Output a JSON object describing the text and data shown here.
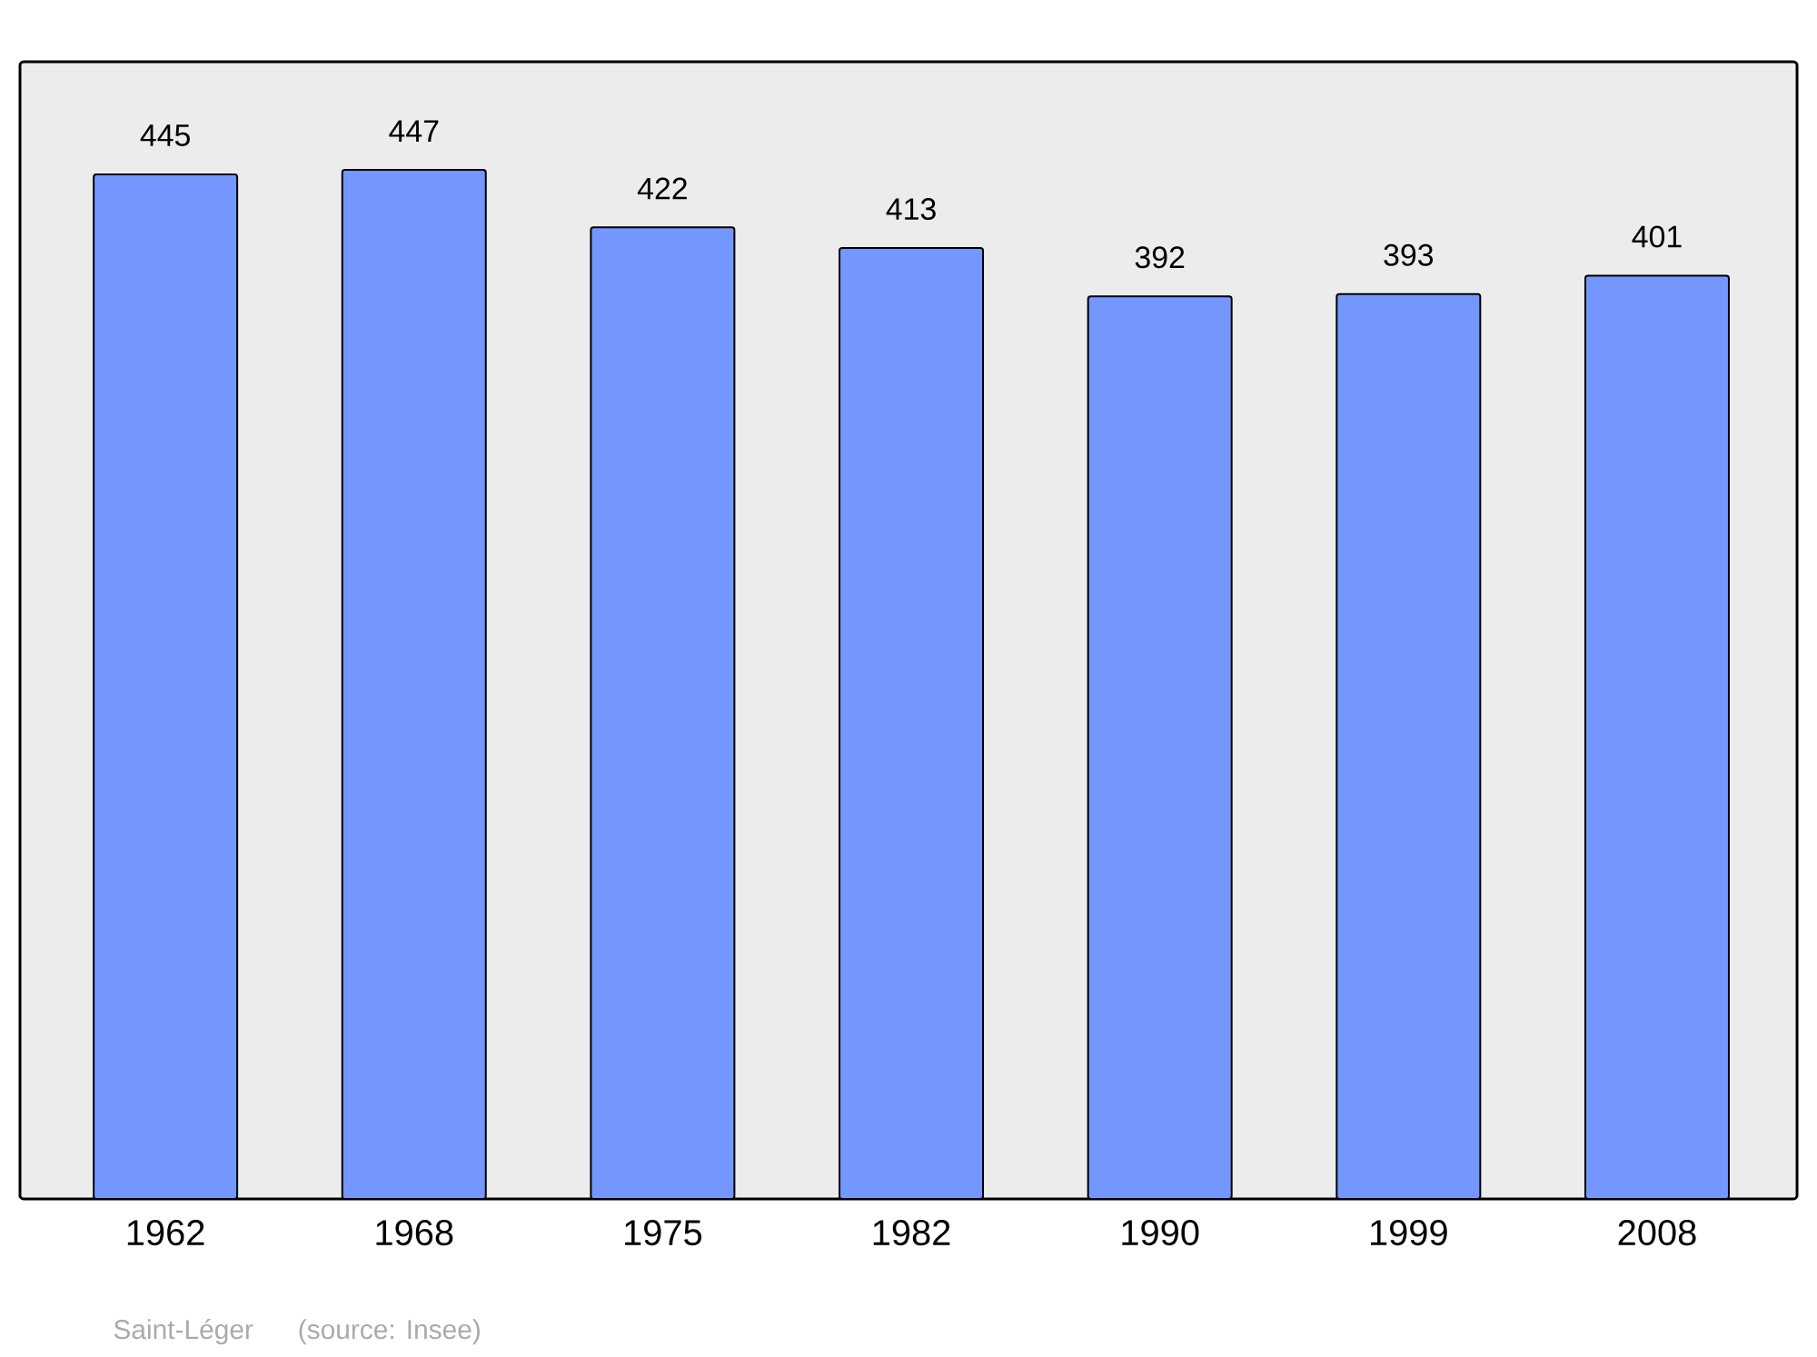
{
  "chart_data": {
    "type": "bar",
    "categories": [
      "1962",
      "1968",
      "1975",
      "1982",
      "1990",
      "1999",
      "2008"
    ],
    "values": [
      445,
      447,
      422,
      413,
      392,
      393,
      401
    ],
    "color": "#7396ff",
    "data_labels": true,
    "annotations": [
      "Saint-Léger",
      "(source: Insee)"
    ]
  }
}
